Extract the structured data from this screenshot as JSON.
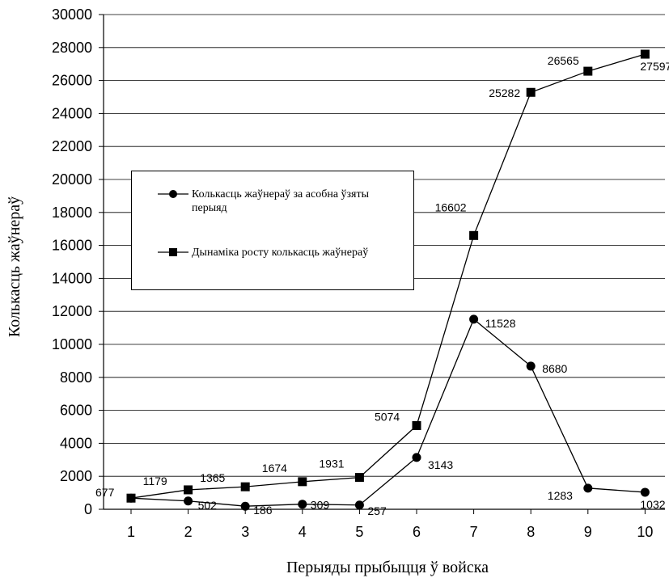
{
  "chart_data": {
    "type": "line",
    "xlabel": "Перыяды прыбыцця ў войска",
    "ylabel": "Колькасць жаўнераў",
    "categories": [
      "1",
      "2",
      "3",
      "4",
      "5",
      "6",
      "7",
      "8",
      "9",
      "10"
    ],
    "ylim": [
      0,
      30000
    ],
    "yticks": [
      0,
      2000,
      4000,
      6000,
      8000,
      10000,
      12000,
      14000,
      16000,
      18000,
      20000,
      22000,
      24000,
      26000,
      28000,
      30000
    ],
    "grid": true,
    "legend_position": "left-middle",
    "series": [
      {
        "name": "Колькасць жаўнераў за асобна ўзяты перыяд",
        "marker": "circle",
        "values": [
          677,
          502,
          186,
          309,
          257,
          3143,
          11528,
          8680,
          1283,
          1032
        ],
        "labels": [
          "677",
          "502",
          "186",
          "309",
          "257",
          "3143",
          "11528",
          "8680",
          "1283",
          "1032"
        ]
      },
      {
        "name": "Дынаміка росту колькасць жаўнераў",
        "marker": "square",
        "values": [
          677,
          1179,
          1365,
          1674,
          1931,
          5074,
          16602,
          25282,
          26565,
          27597
        ],
        "labels": [
          "677",
          "1179",
          "1365",
          "1674",
          "1931",
          "5074",
          "16602",
          "25282",
          "26565",
          "27597"
        ]
      }
    ],
    "line_color": "#000000"
  }
}
